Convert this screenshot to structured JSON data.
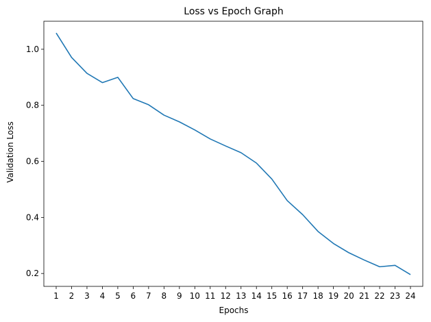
{
  "chart_data": {
    "type": "line",
    "title": "Loss vs Epoch Graph",
    "xlabel": "Epochs",
    "ylabel": "Validation Loss",
    "x": [
      1,
      2,
      3,
      4,
      5,
      6,
      7,
      8,
      9,
      10,
      11,
      12,
      13,
      14,
      15,
      16,
      17,
      18,
      19,
      20,
      21,
      22,
      23,
      24
    ],
    "series": [
      {
        "values": [
          1.058,
          0.971,
          0.914,
          0.881,
          0.9,
          0.824,
          0.802,
          0.765,
          0.741,
          0.712,
          0.68,
          0.655,
          0.631,
          0.594,
          0.537,
          0.46,
          0.41,
          0.35,
          0.307,
          0.274,
          0.248,
          0.224,
          0.229,
          0.196
        ],
        "color": "#1f77b4"
      }
    ],
    "xlim": [
      0.2,
      24.8
    ],
    "ylim": [
      0.154,
      1.1
    ],
    "yticks": [
      0.2,
      0.4,
      0.6,
      0.8,
      1.0
    ],
    "ytick_labels": [
      "0.2",
      "0.4",
      "0.6",
      "0.8",
      "1.0"
    ],
    "xtick_labels": [
      "1",
      "2",
      "3",
      "4",
      "5",
      "6",
      "7",
      "8",
      "9",
      "10",
      "11",
      "12",
      "13",
      "14",
      "15",
      "16",
      "17",
      "18",
      "19",
      "20",
      "21",
      "22",
      "23",
      "24"
    ],
    "grid": false,
    "legend": "none"
  }
}
